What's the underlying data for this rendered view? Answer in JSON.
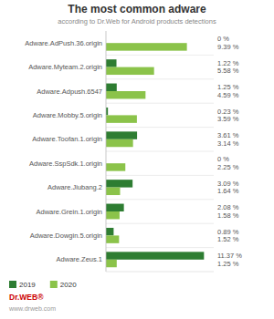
{
  "chart_data": {
    "type": "bar",
    "orientation": "horizontal",
    "title": "The most common adware",
    "subtitle": "according to Dr.Web for Android products detections",
    "categories": [
      "Adware.Zeus.1",
      "Adware.Dowgin.5.origin",
      "Adware.Grein.1.origin",
      "Adware.Jiubang.2",
      "Adware.SspSdk.1.origin",
      "Adware.Toofan.1.origin",
      "Adware.Mobby.5.origin",
      "Adware.Adpush.6547",
      "Adware.Myteam.2.origin",
      "Adware.AdPush.36.origin"
    ],
    "series": [
      {
        "name": "2019",
        "color": "#2e7d32",
        "values": [
          11.37,
          0.89,
          2.08,
          3.09,
          0,
          3.61,
          0.23,
          1.25,
          1.22,
          0
        ],
        "value_labels": [
          "11.37 %",
          "0.89 %",
          "2.08 %",
          "3.09 %",
          "0 %",
          "3.61 %",
          "0.23 %",
          "1.25 %",
          "1.22 %",
          "0 %"
        ]
      },
      {
        "name": "2020",
        "color": "#8bc34a",
        "values": [
          1.25,
          1.52,
          1.58,
          1.64,
          2.25,
          3.14,
          3.59,
          4.59,
          5.58,
          9.39
        ],
        "value_labels": [
          "1.25 %",
          "1.52 %",
          "1.58 %",
          "1.64 %",
          "2.25 %",
          "3.14 %",
          "3.59 %",
          "4.59 %",
          "5.58 %",
          "9.39 %"
        ]
      }
    ],
    "xlim": [
      0,
      12.5
    ],
    "tick_labels": "y",
    "grid": false,
    "legend": "lower left",
    "data_labels": true,
    "annotations": [
      "Dr.WEB®",
      "www.drweb.com"
    ]
  }
}
